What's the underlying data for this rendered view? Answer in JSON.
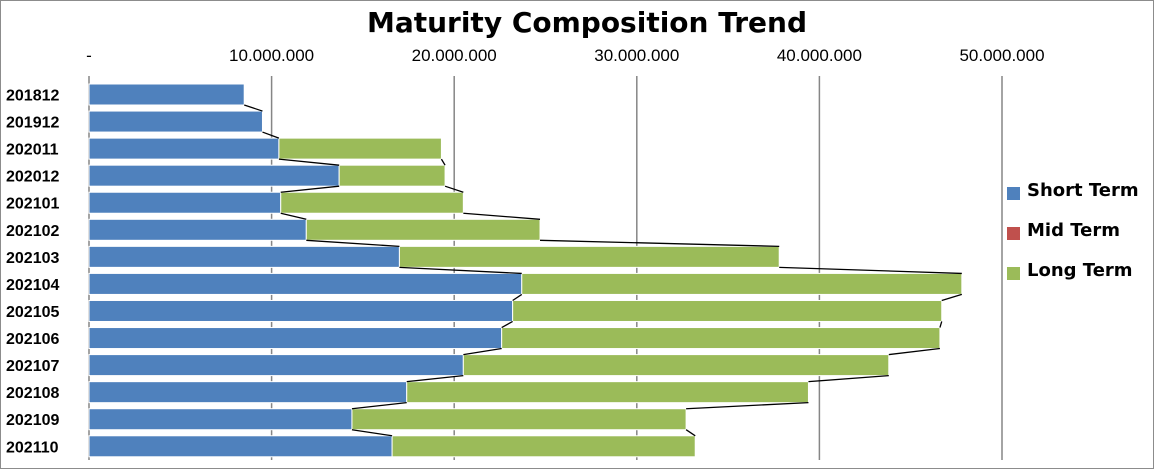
{
  "chart_data": {
    "type": "bar",
    "orientation": "horizontal",
    "stacked": true,
    "title": "Maturity Composition Trend",
    "xlabel": "",
    "ylabel": "",
    "xlim": [
      0,
      50000000
    ],
    "x_ticks": [
      0,
      10000000,
      20000000,
      30000000,
      40000000,
      50000000
    ],
    "x_tick_labels": [
      "-",
      "10.000.000",
      "20.000.000",
      "30.000.000",
      "40.000.000",
      "50.000.000"
    ],
    "x_axis_position": "top",
    "grid": true,
    "legend_position": "right",
    "series_lines": true,
    "categories": [
      "201812",
      "201912",
      "202011",
      "202012",
      "202101",
      "202102",
      "202103",
      "202104",
      "202105",
      "202106",
      "202107",
      "202108",
      "202109",
      "202110"
    ],
    "series": [
      {
        "name": "Short Term",
        "color": "#4f81bd",
        "values": [
          8500000,
          9500000,
          10400000,
          13700000,
          10500000,
          11900000,
          17000000,
          23700000,
          23200000,
          22600000,
          20500000,
          17400000,
          14400000,
          16600000
        ]
      },
      {
        "name": "Mid Term",
        "color": "#c0504d",
        "values": [
          0,
          0,
          0,
          0,
          0,
          0,
          0,
          0,
          0,
          0,
          0,
          0,
          0,
          0
        ]
      },
      {
        "name": "Long Term",
        "color": "#9bbb59",
        "values": [
          0,
          0,
          8900000,
          5800000,
          10000000,
          12800000,
          20800000,
          24100000,
          23500000,
          24000000,
          23300000,
          22000000,
          18300000,
          16600000
        ]
      }
    ]
  }
}
